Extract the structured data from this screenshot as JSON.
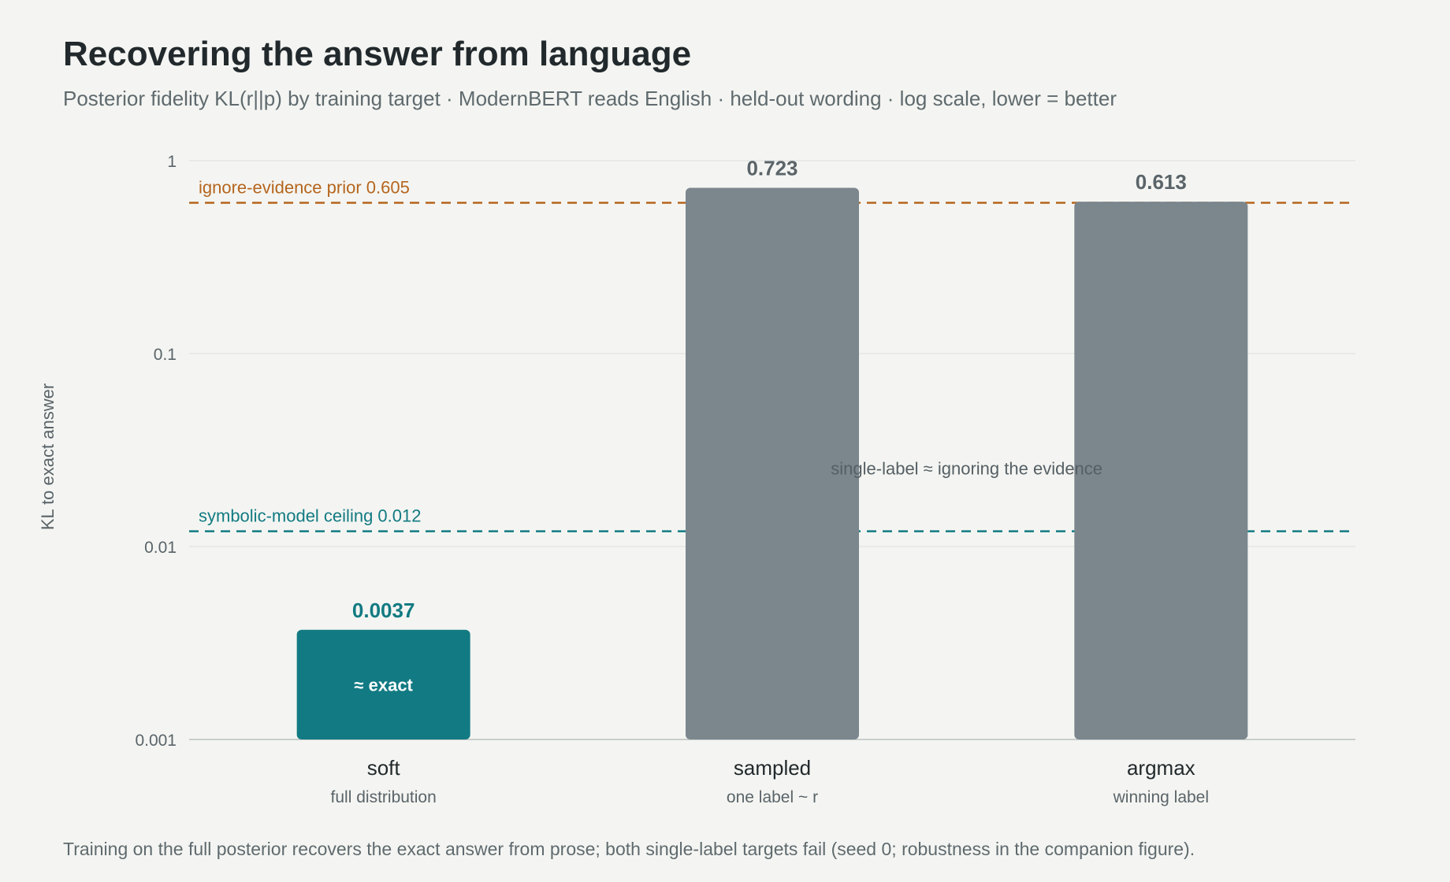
{
  "header": {
    "title": "Recovering the answer from language",
    "subtitle": "Posterior fidelity KL(r||p) by training target · ModernBERT reads English · held-out wording · log scale, lower = better"
  },
  "footnote": "Training on the full posterior recovers the exact answer from prose; both single-label targets fail (seed 0; robustness in the companion figure).",
  "chart_data": {
    "type": "bar",
    "title": "Recovering the answer from language",
    "subtitle": "Posterior fidelity KL(r||p) by training target · ModernBERT reads English · held-out wording · log scale, lower = better",
    "ylabel": "KL to exact answer",
    "xlabel": "",
    "yscale": "log",
    "ylim": [
      0.001,
      1
    ],
    "yticks": [
      {
        "value": 1,
        "label": "1"
      },
      {
        "value": 0.1,
        "label": "0.1"
      },
      {
        "value": 0.01,
        "label": "0.01"
      },
      {
        "value": 0.001,
        "label": "0.001"
      }
    ],
    "grid": true,
    "categories": [
      "soft",
      "sampled",
      "argmax"
    ],
    "category_sublabels": [
      "full distribution",
      "one label ~ r",
      "winning label"
    ],
    "values": [
      0.0037,
      0.723,
      0.613
    ],
    "value_labels": [
      "0.0037",
      "0.723",
      "0.613"
    ],
    "bar_colors": [
      "#127a82",
      "#7b868d",
      "#7b868d"
    ],
    "value_label_colors": [
      "#127a82",
      "#5a6469",
      "#5a6469"
    ],
    "bar_inner_labels": [
      "≈ exact",
      "",
      ""
    ],
    "reference_lines": [
      {
        "value": 0.605,
        "label": "ignore-evidence prior 0.605",
        "color": "#b5651d"
      },
      {
        "value": 0.012,
        "label": "symbolic-model ceiling 0.012",
        "color": "#127a82"
      }
    ],
    "annotations": [
      {
        "text": "single-label ≈ ignoring the evidence",
        "y": 0.0255
      }
    ]
  }
}
